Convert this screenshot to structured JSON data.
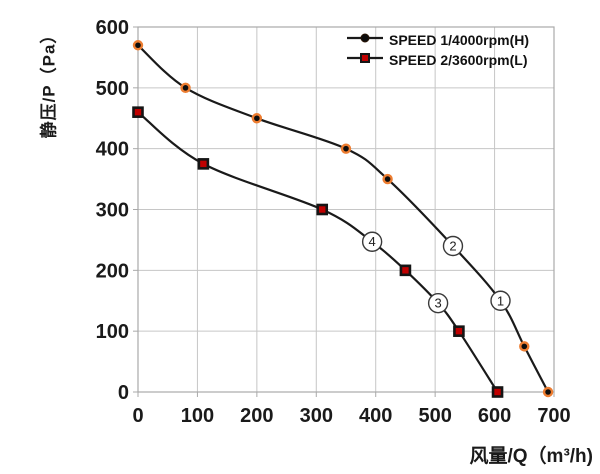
{
  "chart_data": {
    "type": "line",
    "title": "",
    "xlabel": "风量/Q（m³/h)",
    "ylabel": "静压/P（Pa）",
    "xlim": [
      0,
      700
    ],
    "ylim": [
      0,
      600
    ],
    "x_ticks": [
      0,
      100,
      200,
      300,
      400,
      500,
      600,
      700
    ],
    "y_ticks": [
      0,
      100,
      200,
      300,
      400,
      500,
      600
    ],
    "grid": true,
    "legend_position": "top-right-inside",
    "series": [
      {
        "name": "SPEED 1/4000rpm(H)",
        "marker": "circle",
        "points": [
          [
            0,
            570
          ],
          [
            80,
            500
          ],
          [
            200,
            450
          ],
          [
            350,
            400
          ],
          [
            420,
            350
          ],
          [
            650,
            75
          ],
          [
            690,
            0
          ]
        ],
        "smooth_path": [
          [
            0,
            570
          ],
          [
            80,
            500
          ],
          [
            200,
            450
          ],
          [
            350,
            400
          ],
          [
            420,
            350
          ],
          [
            530,
            240
          ],
          [
            610,
            150
          ],
          [
            650,
            75
          ],
          [
            690,
            0
          ]
        ]
      },
      {
        "name": "SPEED 2/3600rpm(L)",
        "marker": "square",
        "points": [
          [
            0,
            460
          ],
          [
            110,
            375
          ],
          [
            310,
            300
          ],
          [
            450,
            200
          ],
          [
            540,
            100
          ],
          [
            605,
            0
          ]
        ],
        "smooth_path": [
          [
            0,
            460
          ],
          [
            110,
            375
          ],
          [
            310,
            300
          ],
          [
            394,
            247
          ],
          [
            450,
            200
          ],
          [
            505,
            146
          ],
          [
            540,
            100
          ],
          [
            605,
            0
          ]
        ]
      }
    ],
    "annotations": [
      {
        "digit": "1",
        "q": 610,
        "p": 150
      },
      {
        "digit": "2",
        "q": 530,
        "p": 240
      },
      {
        "digit": "3",
        "q": 505,
        "p": 146
      },
      {
        "digit": "4",
        "q": 394,
        "p": 247
      }
    ],
    "colors": {
      "curve": "#1a1a1a",
      "grid": "#c6c6c6",
      "border": "#a9a9a9",
      "marker_circle_fill": "#0d0d0d",
      "marker_circle_ring": "#ED7D31",
      "marker_square_fill": "#C00000",
      "marker_square_border": "#151515",
      "annotation_stroke": "#3a3a3a",
      "annotation_fill": "#ffffff",
      "text": "#1a1a1a"
    }
  }
}
